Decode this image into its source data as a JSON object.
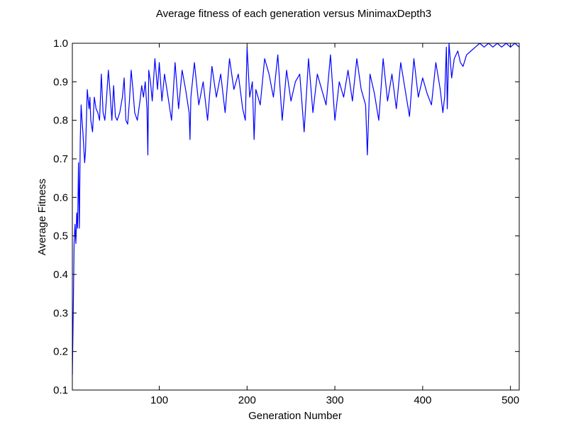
{
  "chart_data": {
    "type": "line",
    "title": "Average fitness of each generation versus MinimaxDepth3",
    "xlabel": "Generation Number",
    "ylabel": "Average Fitness",
    "xlim": [
      1,
      510
    ],
    "ylim": [
      0.1,
      1.0
    ],
    "xticks": [
      100,
      200,
      300,
      400,
      500
    ],
    "yticks": [
      0.1,
      0.2,
      0.3,
      0.4,
      0.5,
      0.6,
      0.7,
      0.8,
      0.9,
      1.0
    ],
    "xtick_labels": [
      "100",
      "200",
      "300",
      "400",
      "500"
    ],
    "ytick_labels": [
      "0.1",
      "0.2",
      "0.3",
      "0.4",
      "0.5",
      "0.6",
      "0.7",
      "0.8",
      "0.9",
      "1.0"
    ],
    "grid": false,
    "legend": "none",
    "series_color": "#0000ff",
    "x": [
      1,
      2,
      3,
      4,
      5,
      6,
      7,
      8,
      9,
      10,
      11,
      12,
      13,
      15,
      16,
      18,
      20,
      21,
      22,
      24,
      26,
      28,
      30,
      32,
      34,
      36,
      38,
      40,
      42,
      44,
      46,
      48,
      50,
      52,
      55,
      58,
      60,
      62,
      64,
      66,
      68,
      70,
      72,
      75,
      78,
      80,
      82,
      84,
      86,
      87,
      88,
      90,
      92,
      95,
      98,
      100,
      103,
      106,
      110,
      114,
      118,
      122,
      126,
      130,
      134,
      135,
      136,
      140,
      145,
      150,
      155,
      160,
      165,
      170,
      175,
      180,
      185,
      190,
      195,
      198,
      200,
      203,
      206,
      208,
      210,
      215,
      220,
      225,
      230,
      235,
      240,
      245,
      250,
      255,
      260,
      265,
      270,
      275,
      280,
      285,
      290,
      295,
      300,
      305,
      310,
      315,
      320,
      325,
      330,
      335,
      337,
      340,
      345,
      350,
      355,
      360,
      365,
      370,
      375,
      380,
      385,
      390,
      395,
      400,
      405,
      410,
      415,
      420,
      423,
      425,
      427,
      428,
      430,
      433,
      436,
      440,
      443,
      446,
      450,
      455,
      460,
      465,
      470,
      475,
      480,
      485,
      490,
      495,
      500,
      505,
      510
    ],
    "y": [
      0.14,
      0.3,
      0.48,
      0.53,
      0.48,
      0.56,
      0.52,
      0.69,
      0.52,
      0.75,
      0.84,
      0.8,
      0.77,
      0.69,
      0.72,
      0.88,
      0.83,
      0.86,
      0.8,
      0.77,
      0.86,
      0.83,
      0.82,
      0.8,
      0.92,
      0.82,
      0.8,
      0.86,
      0.93,
      0.87,
      0.8,
      0.89,
      0.81,
      0.8,
      0.82,
      0.86,
      0.91,
      0.8,
      0.79,
      0.85,
      0.93,
      0.88,
      0.82,
      0.8,
      0.85,
      0.89,
      0.86,
      0.9,
      0.83,
      0.71,
      0.93,
      0.9,
      0.85,
      0.96,
      0.88,
      0.95,
      0.85,
      0.92,
      0.86,
      0.8,
      0.95,
      0.83,
      0.93,
      0.88,
      0.82,
      0.75,
      0.86,
      0.95,
      0.84,
      0.9,
      0.8,
      0.94,
      0.86,
      0.92,
      0.82,
      0.96,
      0.88,
      0.92,
      0.83,
      0.8,
      0.99,
      0.86,
      0.9,
      0.75,
      0.88,
      0.84,
      0.96,
      0.92,
      0.86,
      0.97,
      0.8,
      0.93,
      0.85,
      0.9,
      0.92,
      0.77,
      0.96,
      0.82,
      0.92,
      0.88,
      0.84,
      0.97,
      0.8,
      0.9,
      0.86,
      0.93,
      0.85,
      0.96,
      0.88,
      0.84,
      0.71,
      0.92,
      0.87,
      0.8,
      0.96,
      0.85,
      0.92,
      0.83,
      0.95,
      0.88,
      0.81,
      0.96,
      0.86,
      0.91,
      0.87,
      0.84,
      0.95,
      0.88,
      0.82,
      0.86,
      0.99,
      0.83,
      1.0,
      0.91,
      0.96,
      0.98,
      0.95,
      0.94,
      0.97,
      0.98,
      0.99,
      1.0,
      0.99,
      1.0,
      0.99,
      1.0,
      0.99,
      1.0,
      0.99,
      1.0,
      0.99
    ]
  }
}
